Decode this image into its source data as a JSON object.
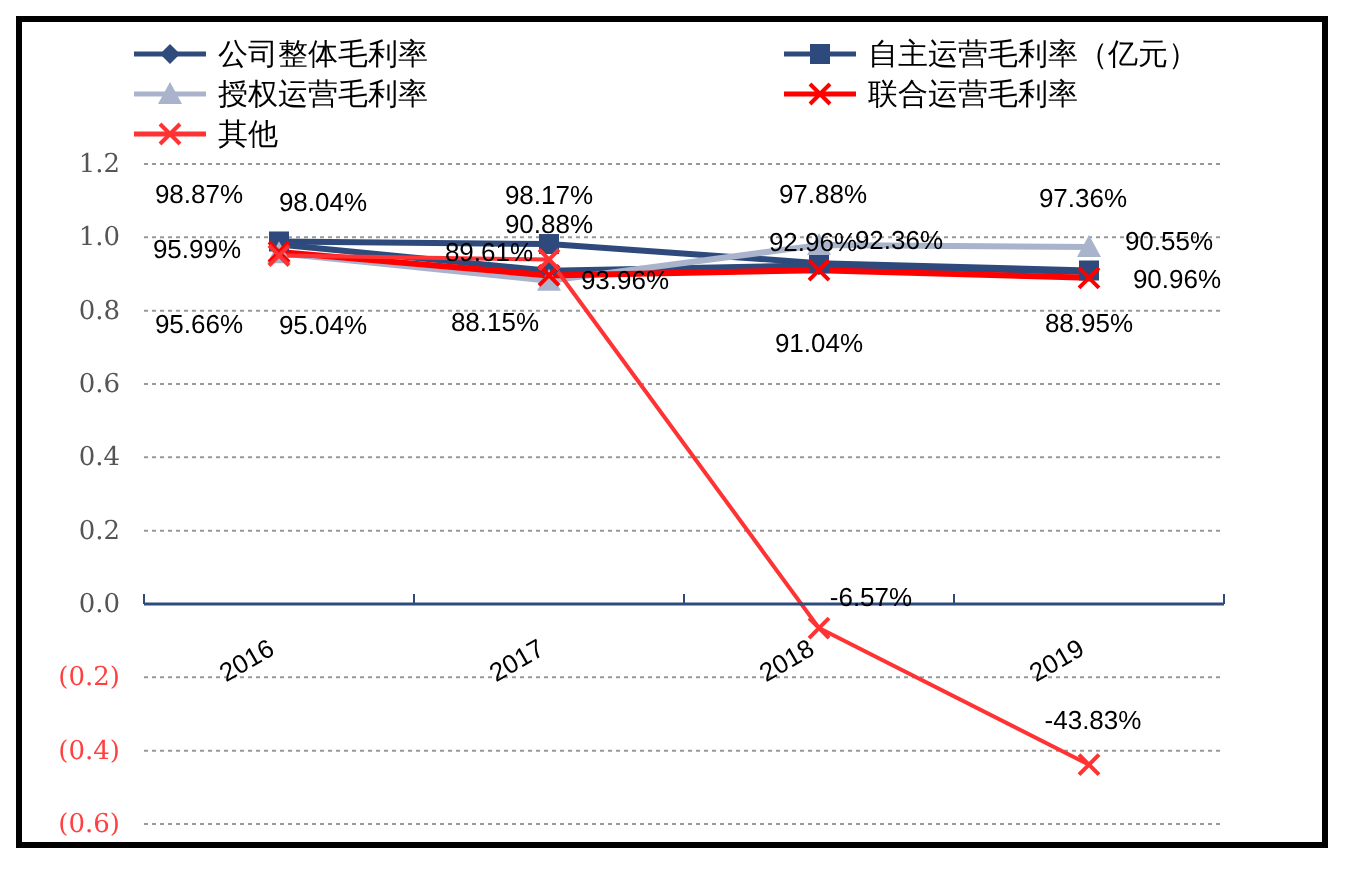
{
  "chart_data": {
    "type": "line",
    "categories": [
      "2016",
      "2017",
      "2018",
      "2019"
    ],
    "series": [
      {
        "name": "公司整体毛利率",
        "color": "#2f4b7c",
        "marker": "diamond",
        "values": [
          0.9804,
          0.9088,
          0.9236,
          0.9055
        ],
        "value_labels": [
          "98.04%",
          "90.88%",
          "92.36%",
          "90.55%"
        ]
      },
      {
        "name": "自主运营毛利率（亿元）",
        "color": "#2e4a7d",
        "marker": "square",
        "values": [
          0.9887,
          0.9817,
          0.9296,
          0.9096
        ],
        "value_labels": [
          "98.87%",
          "98.17%",
          "92.96%",
          "90.96%"
        ]
      },
      {
        "name": "授权运营毛利率",
        "color": "#a9b4cc",
        "marker": "triangle",
        "values": [
          0.9566,
          0.8815,
          0.9788,
          0.9736
        ],
        "value_labels": [
          "95.66%",
          "88.15%",
          "97.88%",
          "97.36%"
        ]
      },
      {
        "name": "联合运营毛利率",
        "color": "#ff0000",
        "marker": "cross",
        "values": [
          0.9599,
          0.8961,
          0.9104,
          0.8895
        ],
        "value_labels": [
          "95.99%",
          "89.61%",
          "91.04%",
          "88.95%"
        ]
      },
      {
        "name": "其他",
        "color": "#ff3333",
        "marker": "cross",
        "values": [
          0.9504,
          0.9396,
          -0.0657,
          -0.4383
        ],
        "value_labels": [
          "95.04%",
          "93.96%",
          "-6.57%",
          "-43.83%"
        ]
      }
    ],
    "ylim": [
      -0.6,
      1.2
    ],
    "yticks": [
      {
        "value": 1.2,
        "label": "1.2"
      },
      {
        "value": 1.0,
        "label": "1.0"
      },
      {
        "value": 0.8,
        "label": "0.8"
      },
      {
        "value": 0.6,
        "label": "0.6"
      },
      {
        "value": 0.4,
        "label": "0.4"
      },
      {
        "value": 0.2,
        "label": "0.2"
      },
      {
        "value": 0,
        "label": "0.0"
      },
      {
        "value": -0.2,
        "label": "(0.2)"
      },
      {
        "value": -0.4,
        "label": "(0.4)"
      },
      {
        "value": -0.6,
        "label": "(0.6)"
      }
    ],
    "grid": "y",
    "legend": "top"
  }
}
